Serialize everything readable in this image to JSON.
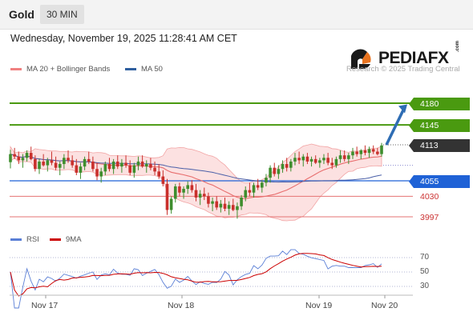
{
  "header": {
    "instrument": "Gold",
    "timeframe": "30 MIN"
  },
  "datetime": "Wednesday, November 19, 2025 11:28:41 AM CET",
  "brand": {
    "logo_text": "PEDIAFX",
    "logo_suffix": ".com",
    "watermark": "Research © 2025 Trading Central"
  },
  "legend_main": [
    {
      "label": "MA 20 + Bollinger Bands",
      "color": "#f08080"
    },
    {
      "label": "MA 50",
      "color": "#2f5f9f"
    }
  ],
  "legend_rsi": [
    {
      "label": "RSI",
      "color": "#5a7fd6"
    },
    {
      "label": "9MA",
      "color": "#cc0000"
    }
  ],
  "colors": {
    "bull": "#3e8e2e",
    "bear": "#c9302c",
    "target": "#4a9a10",
    "pivot": "#1f62d6",
    "support": "#e57373",
    "current": "#333333",
    "arrow": "#2e6db4"
  },
  "chart_data": {
    "type": "candlestick",
    "title": "Gold",
    "timeframe": "30 MIN",
    "x_labels": [
      "Nov 17",
      "Nov 18",
      "Nov 19",
      "Nov 20"
    ],
    "ylim": [
      3980,
      4195
    ],
    "levels": [
      {
        "label": "4180",
        "value": 4180,
        "kind": "target"
      },
      {
        "label": "4145",
        "value": 4145,
        "kind": "target"
      },
      {
        "label": "4113",
        "value": 4113,
        "kind": "current"
      },
      {
        "label": "4055",
        "value": 4055,
        "kind": "pivot"
      },
      {
        "label": "4030",
        "value": 4030,
        "kind": "support"
      },
      {
        "label": "3997",
        "value": 3997,
        "kind": "support"
      }
    ],
    "arrow": {
      "from": 4113,
      "to": 4178
    },
    "candles": [
      [
        4085,
        4105,
        4075,
        4098
      ],
      [
        4098,
        4108,
        4090,
        4094
      ],
      [
        4094,
        4102,
        4082,
        4088
      ],
      [
        4088,
        4098,
        4076,
        4092
      ],
      [
        4092,
        4104,
        4086,
        4100
      ],
      [
        4100,
        4110,
        4088,
        4090
      ],
      [
        4090,
        4096,
        4070,
        4074
      ],
      [
        4074,
        4090,
        4066,
        4086
      ],
      [
        4086,
        4098,
        4078,
        4080
      ],
      [
        4080,
        4092,
        4070,
        4088
      ],
      [
        4088,
        4102,
        4080,
        4084
      ],
      [
        4084,
        4094,
        4072,
        4076
      ],
      [
        4076,
        4086,
        4064,
        4082
      ],
      [
        4082,
        4098,
        4074,
        4092
      ],
      [
        4092,
        4104,
        4084,
        4088
      ],
      [
        4088,
        4096,
        4076,
        4080
      ],
      [
        4080,
        4090,
        4064,
        4068
      ],
      [
        4068,
        4084,
        4058,
        4078
      ],
      [
        4078,
        4094,
        4072,
        4090
      ],
      [
        4090,
        4102,
        4082,
        4086
      ],
      [
        4086,
        4094,
        4070,
        4074
      ],
      [
        4074,
        4084,
        4056,
        4062
      ],
      [
        4062,
        4076,
        4052,
        4070
      ],
      [
        4070,
        4086,
        4064,
        4082
      ],
      [
        4082,
        4092,
        4070,
        4074
      ],
      [
        4074,
        4090,
        4066,
        4086
      ],
      [
        4086,
        4096,
        4074,
        4078
      ],
      [
        4078,
        4090,
        4068,
        4084
      ],
      [
        4084,
        4096,
        4076,
        4080
      ],
      [
        4080,
        4088,
        4064,
        4068
      ],
      [
        4068,
        4084,
        4060,
        4080
      ],
      [
        4080,
        4094,
        4072,
        4086
      ],
      [
        4086,
        4096,
        4076,
        4078
      ],
      [
        4078,
        4088,
        4068,
        4082
      ],
      [
        4082,
        4092,
        4072,
        4076
      ],
      [
        4076,
        4086,
        4064,
        4070
      ],
      [
        4070,
        4082,
        4058,
        4062
      ],
      [
        4062,
        4072,
        4046,
        4050
      ],
      [
        4050,
        4058,
        4000,
        4008
      ],
      [
        4008,
        4030,
        4002,
        4026
      ],
      [
        4026,
        4050,
        4020,
        4046
      ],
      [
        4046,
        4052,
        4030,
        4036
      ],
      [
        4036,
        4046,
        4026,
        4042
      ],
      [
        4042,
        4054,
        4034,
        4048
      ],
      [
        4048,
        4056,
        4036,
        4040
      ],
      [
        4040,
        4050,
        4022,
        4028
      ],
      [
        4028,
        4040,
        4016,
        4034
      ],
      [
        4034,
        4044,
        4024,
        4030
      ],
      [
        4030,
        4036,
        4012,
        4018
      ],
      [
        4018,
        4028,
        4006,
        4022
      ],
      [
        4022,
        4030,
        4008,
        4012
      ],
      [
        4012,
        4024,
        4004,
        4018
      ],
      [
        4018,
        4028,
        4006,
        4010
      ],
      [
        4010,
        4022,
        4000,
        4016
      ],
      [
        4016,
        4026,
        4006,
        4008
      ],
      [
        4008,
        4020,
        3994,
        4014
      ],
      [
        4014,
        4032,
        4008,
        4028
      ],
      [
        4028,
        4046,
        4022,
        4040
      ],
      [
        4040,
        4052,
        4030,
        4036
      ],
      [
        4036,
        4052,
        4028,
        4048
      ],
      [
        4048,
        4058,
        4040,
        4044
      ],
      [
        4044,
        4056,
        4036,
        4052
      ],
      [
        4052,
        4066,
        4046,
        4060
      ],
      [
        4060,
        4080,
        4052,
        4076
      ],
      [
        4076,
        4084,
        4062,
        4066
      ],
      [
        4066,
        4080,
        4058,
        4074
      ],
      [
        4074,
        4088,
        4068,
        4082
      ],
      [
        4082,
        4092,
        4070,
        4076
      ],
      [
        4076,
        4090,
        4070,
        4086
      ],
      [
        4086,
        4100,
        4080,
        4092
      ],
      [
        4092,
        4102,
        4082,
        4088
      ],
      [
        4088,
        4098,
        4078,
        4094
      ],
      [
        4094,
        4100,
        4082,
        4086
      ],
      [
        4086,
        4094,
        4078,
        4090
      ],
      [
        4090,
        4096,
        4082,
        4084
      ],
      [
        4084,
        4092,
        4076,
        4088
      ],
      [
        4088,
        4098,
        4082,
        4092
      ],
      [
        4092,
        4100,
        4080,
        4084
      ],
      [
        4084,
        4092,
        4074,
        4080
      ],
      [
        4080,
        4094,
        4076,
        4090
      ],
      [
        4090,
        4104,
        4084,
        4096
      ],
      [
        4096,
        4104,
        4086,
        4090
      ],
      [
        4090,
        4100,
        4082,
        4096
      ],
      [
        4096,
        4108,
        4090,
        4102
      ],
      [
        4102,
        4110,
        4094,
        4098
      ],
      [
        4098,
        4106,
        4090,
        4104
      ],
      [
        4104,
        4112,
        4096,
        4100
      ],
      [
        4100,
        4110,
        4092,
        4106
      ],
      [
        4106,
        4112,
        4098,
        4102
      ],
      [
        4102,
        4108,
        4096,
        4098
      ],
      [
        4098,
        4116,
        4094,
        4112
      ]
    ],
    "rsi": {
      "levels": [
        70,
        50,
        30
      ]
    }
  }
}
